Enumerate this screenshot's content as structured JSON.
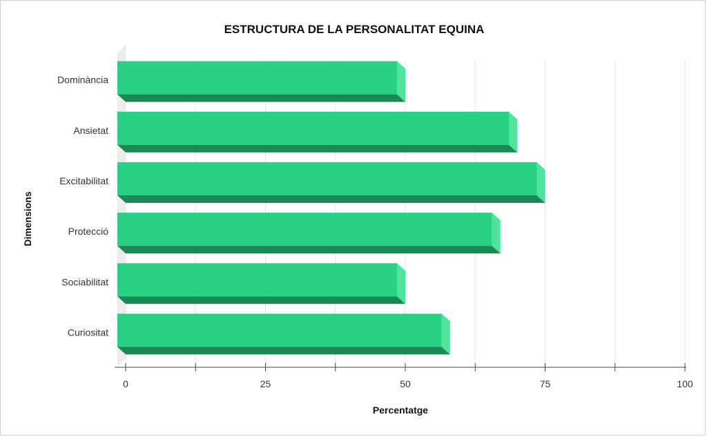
{
  "chart_data": {
    "type": "bar",
    "orientation": "horizontal",
    "title": "ESTRUCTURA DE LA PERSONALITAT EQUINA",
    "xlabel": "Percentatge",
    "ylabel": "Dimensions",
    "categories": [
      "Dominància",
      "Ansietat",
      "Excitabilitat",
      "Protecció",
      "Sociabilitat",
      "Curiositat"
    ],
    "values": [
      50,
      70,
      75,
      67,
      50,
      58
    ],
    "xlim": [
      0,
      100
    ],
    "xticks": [
      "0",
      "25",
      "50",
      "75",
      "100"
    ],
    "grid": true,
    "three_d": true,
    "colors": {
      "bar_front": "#28d184",
      "bar_bottom": "#1a8a55",
      "bar_side": "#4fe39d",
      "grid": "#e4e4e4",
      "floor": "#ececec"
    }
  }
}
